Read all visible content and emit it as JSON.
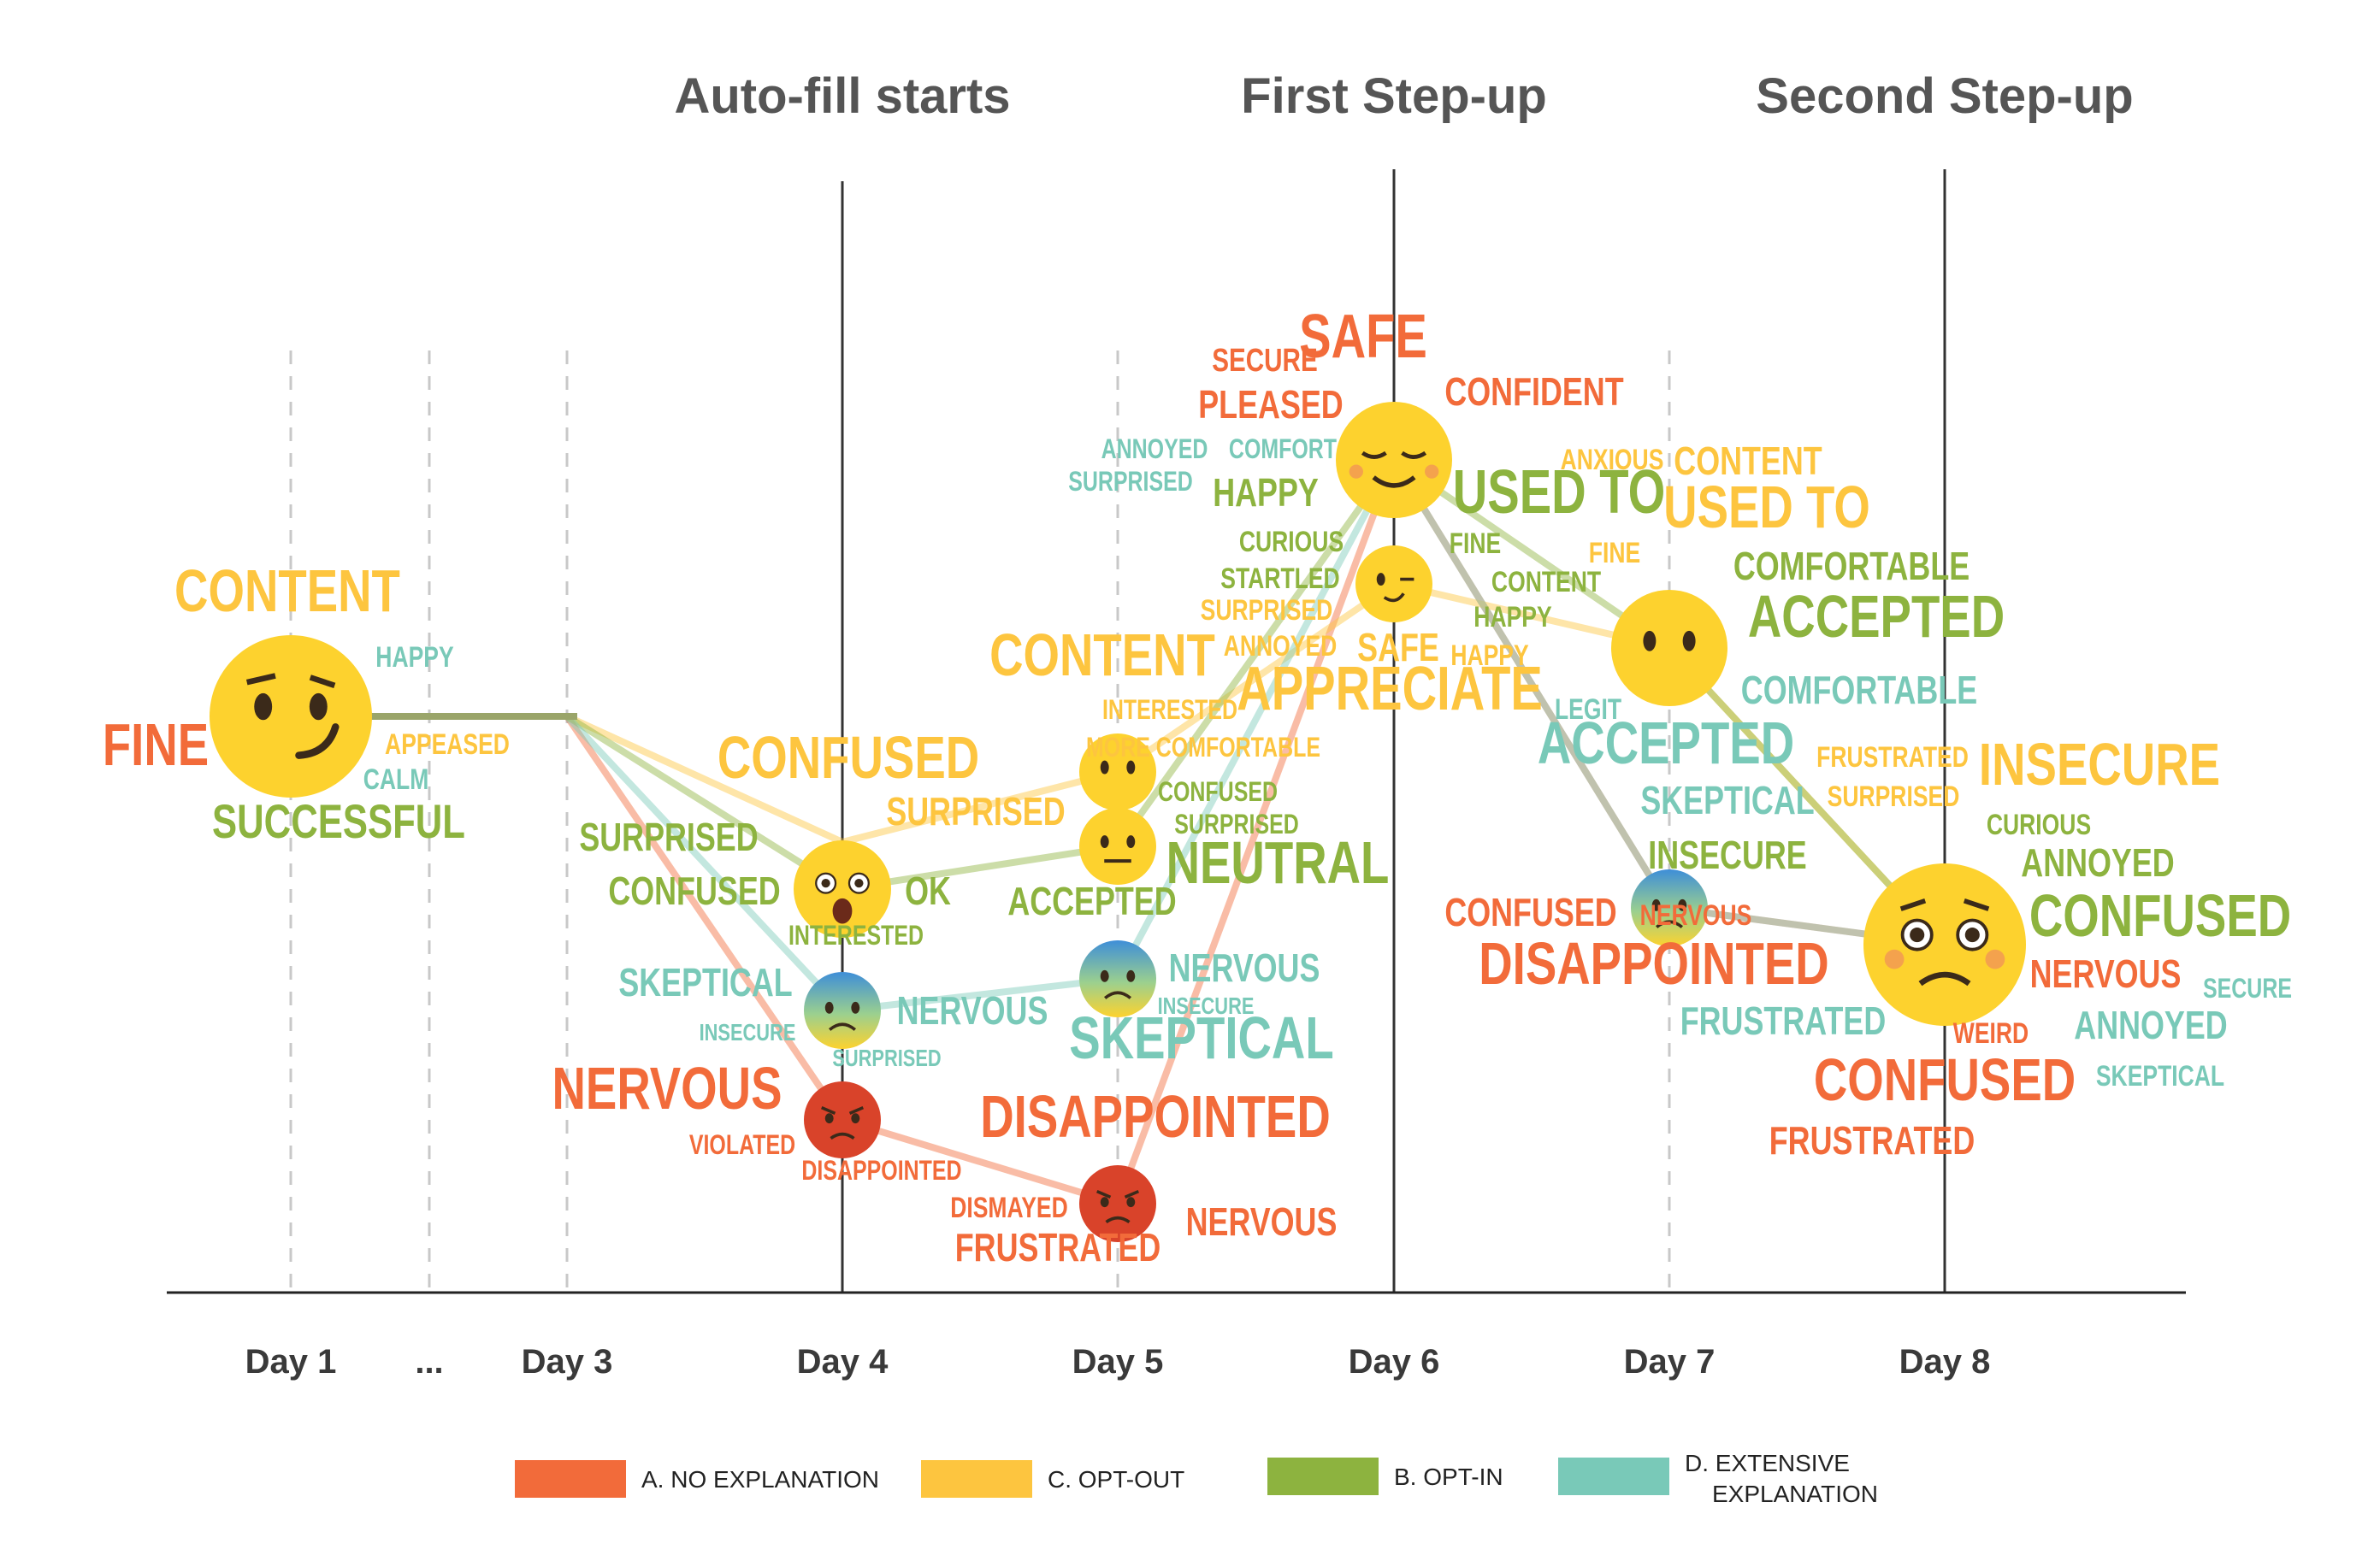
{
  "chart_data": {
    "type": "line",
    "x_categories": [
      "Day 1",
      "...",
      "Day 3",
      "Day 4",
      "Day 5",
      "Day 6",
      "Day 7",
      "Day 8"
    ],
    "phase_markers": [
      {
        "day": "Day 4",
        "label": "Auto-fill starts"
      },
      {
        "day": "Day 6",
        "label": "First Step-up"
      },
      {
        "day": "Day 8",
        "label": "Second Step-up"
      }
    ],
    "colors": {
      "A": "#f26b3a",
      "B": "#8db33f",
      "C": "#fdc53f",
      "D": "#79c9b8"
    },
    "series": [
      {
        "key": "A",
        "name": "A. NO EXPLANATION",
        "points": [
          {
            "day": "Day 1",
            "mood": "smirk"
          },
          {
            "day": "Day 3",
            "mood": "smirk"
          },
          {
            "day": "Day 4",
            "mood": "angry"
          },
          {
            "day": "Day 5",
            "mood": "angry"
          },
          {
            "day": "Day 6",
            "mood": "relieved"
          },
          {
            "day": "Day 7",
            "mood": "anxious"
          },
          {
            "day": "Day 8",
            "mood": "worried"
          }
        ]
      },
      {
        "key": "C",
        "name": "C. OPT-OUT",
        "points": [
          {
            "day": "Day 1",
            "mood": "smirk"
          },
          {
            "day": "Day 3",
            "mood": "smirk"
          },
          {
            "day": "Day 4",
            "mood": "astonished"
          },
          {
            "day": "Day 5",
            "mood": "no-mouth"
          },
          {
            "day": "Day 6",
            "mood": "wink"
          },
          {
            "day": "Day 7",
            "mood": "no-mouth"
          },
          {
            "day": "Day 8",
            "mood": "worried"
          }
        ]
      },
      {
        "key": "B",
        "name": "B. OPT-IN",
        "points": [
          {
            "day": "Day 1",
            "mood": "smirk"
          },
          {
            "day": "Day 3",
            "mood": "smirk"
          },
          {
            "day": "Day 4",
            "mood": "astonished"
          },
          {
            "day": "Day 5",
            "mood": "neutral"
          },
          {
            "day": "Day 6",
            "mood": "relieved"
          },
          {
            "day": "Day 7",
            "mood": "no-mouth"
          },
          {
            "day": "Day 8",
            "mood": "worried"
          }
        ]
      },
      {
        "key": "D",
        "name": "D. EXTENSIVE EXPLANATION",
        "points": [
          {
            "day": "Day 1",
            "mood": "smirk"
          },
          {
            "day": "Day 3",
            "mood": "smirk"
          },
          {
            "day": "Day 4",
            "mood": "anxious"
          },
          {
            "day": "Day 5",
            "mood": "anxious"
          },
          {
            "day": "Day 6",
            "mood": "relieved"
          },
          {
            "day": "Day 7",
            "mood": "anxious"
          },
          {
            "day": "Day 8",
            "mood": "worried"
          }
        ]
      }
    ],
    "words": [
      {
        "t": "CONTENT",
        "c": "C",
        "w": 1
      },
      {
        "t": "HAPPY",
        "c": "D",
        "w": 0.4
      },
      {
        "t": "FINE",
        "c": "A",
        "w": 1
      },
      {
        "t": "APPEASED",
        "c": "C",
        "w": 0.4
      },
      {
        "t": "CALM",
        "c": "D",
        "w": 0.4
      },
      {
        "t": "SUCCESSFUL",
        "c": "B",
        "w": 0.8
      },
      {
        "t": "CONFUSED",
        "c": "C",
        "w": 1
      },
      {
        "t": "SURPRISED",
        "c": "B",
        "w": 0.7
      },
      {
        "t": "SURPRISED",
        "c": "C",
        "w": 0.7
      },
      {
        "t": "CONFUSED",
        "c": "B",
        "w": 0.7
      },
      {
        "t": "OK",
        "c": "B",
        "w": 0.7
      },
      {
        "t": "INTERESTED",
        "c": "B",
        "w": 0.4
      },
      {
        "t": "SKEPTICAL",
        "c": "D",
        "w": 0.7
      },
      {
        "t": "NERVOUS",
        "c": "D",
        "w": 0.7
      },
      {
        "t": "INSECURE",
        "c": "D",
        "w": 0.4
      },
      {
        "t": "SURPRISED",
        "c": "D",
        "w": 0.4
      },
      {
        "t": "NERVOUS",
        "c": "A",
        "w": 1
      },
      {
        "t": "VIOLATED",
        "c": "A",
        "w": 0.45
      },
      {
        "t": "DISAPPOINTED",
        "c": "A",
        "w": 0.45
      },
      {
        "t": "CONTENT",
        "c": "C",
        "w": 1
      },
      {
        "t": "INTERESTED",
        "c": "C",
        "w": 0.45
      },
      {
        "t": "MORE COMFORTABLE",
        "c": "C",
        "w": 0.4
      },
      {
        "t": "CONFUSED",
        "c": "B",
        "w": 0.45
      },
      {
        "t": "SURPRISED",
        "c": "B",
        "w": 0.45
      },
      {
        "t": "NEUTRAL",
        "c": "B",
        "w": 1
      },
      {
        "t": "ACCEPTED",
        "c": "B",
        "w": 0.7
      },
      {
        "t": "NERVOUS",
        "c": "D",
        "w": 0.7
      },
      {
        "t": "INSECURE",
        "c": "D",
        "w": 0.4
      },
      {
        "t": "SKEPTICAL",
        "c": "D",
        "w": 1
      },
      {
        "t": "DISAPPOINTED",
        "c": "A",
        "w": 1
      },
      {
        "t": "DISMAYED",
        "c": "A",
        "w": 0.45
      },
      {
        "t": "FRUSTRATED",
        "c": "A",
        "w": 0.7
      },
      {
        "t": "NERVOUS",
        "c": "A",
        "w": 0.7
      },
      {
        "t": "SECURE",
        "c": "A",
        "w": 0.45
      },
      {
        "t": "SAFE",
        "c": "A",
        "w": 1
      },
      {
        "t": "CONFIDENT",
        "c": "A",
        "w": 0.7
      },
      {
        "t": "PLEASED",
        "c": "A",
        "w": 0.7
      },
      {
        "t": "ANNOYED",
        "c": "D",
        "w": 0.4
      },
      {
        "t": "COMFORT",
        "c": "D",
        "w": 0.4
      },
      {
        "t": "SURPRISED",
        "c": "D",
        "w": 0.4
      },
      {
        "t": "HAPPY",
        "c": "B",
        "w": 0.7
      },
      {
        "t": "USED TO",
        "c": "B",
        "w": 1
      },
      {
        "t": "CURIOUS",
        "c": "B",
        "w": 0.45
      },
      {
        "t": "STARTLED",
        "c": "B",
        "w": 0.45
      },
      {
        "t": "FINE",
        "c": "B",
        "w": 0.45
      },
      {
        "t": "CONTENT",
        "c": "B",
        "w": 0.45
      },
      {
        "t": "HAPPY",
        "c": "B",
        "w": 0.45
      },
      {
        "t": "SURPRISED",
        "c": "C",
        "w": 0.45
      },
      {
        "t": "ANNOYED",
        "c": "C",
        "w": 0.45
      },
      {
        "t": "SAFE",
        "c": "C",
        "w": 0.6
      },
      {
        "t": "HAPPY",
        "c": "C",
        "w": 0.45
      },
      {
        "t": "APPRECIATE",
        "c": "C",
        "w": 1
      },
      {
        "t": "LEGIT",
        "c": "D",
        "w": 0.45
      },
      {
        "t": "ANXIOUS",
        "c": "C",
        "w": 0.45
      },
      {
        "t": "CONTENT",
        "c": "C",
        "w": 0.7
      },
      {
        "t": "USED TO",
        "c": "C",
        "w": 1
      },
      {
        "t": "FINE",
        "c": "C",
        "w": 0.45
      },
      {
        "t": "COMFORTABLE",
        "c": "B",
        "w": 0.7
      },
      {
        "t": "ACCEPTED",
        "c": "B",
        "w": 1
      },
      {
        "t": "COMFORTABLE",
        "c": "D",
        "w": 0.7
      },
      {
        "t": "ACCEPTED",
        "c": "D",
        "w": 1
      },
      {
        "t": "SKEPTICAL",
        "c": "D",
        "w": 0.7
      },
      {
        "t": "FRUSTRATED",
        "c": "C",
        "w": 0.45
      },
      {
        "t": "SURPRISED",
        "c": "C",
        "w": 0.45
      },
      {
        "t": "INSECURE",
        "c": "B",
        "w": 0.7
      },
      {
        "t": "NERVOUS",
        "c": "A",
        "w": 0.45
      },
      {
        "t": "CONFUSED",
        "c": "A",
        "w": 0.7
      },
      {
        "t": "DISAPPOINTED",
        "c": "A",
        "w": 1
      },
      {
        "t": "FRUSTRATED",
        "c": "D",
        "w": 0.7
      },
      {
        "t": "INSECURE",
        "c": "C",
        "w": 1
      },
      {
        "t": "CURIOUS",
        "c": "B",
        "w": 0.45
      },
      {
        "t": "ANNOYED",
        "c": "B",
        "w": 0.7
      },
      {
        "t": "CONFUSED",
        "c": "B",
        "w": 1
      },
      {
        "t": "NERVOUS",
        "c": "A",
        "w": 0.7
      },
      {
        "t": "SECURE",
        "c": "D",
        "w": 0.45
      },
      {
        "t": "WEIRD",
        "c": "A",
        "w": 0.45
      },
      {
        "t": "ANNOYED",
        "c": "D",
        "w": 0.7
      },
      {
        "t": "CONFUSED",
        "c": "A",
        "w": 1
      },
      {
        "t": "SKEPTICAL",
        "c": "D",
        "w": 0.45
      },
      {
        "t": "FRUSTRATED",
        "c": "A",
        "w": 0.7
      }
    ],
    "legend": {
      "position": "bottom"
    }
  }
}
